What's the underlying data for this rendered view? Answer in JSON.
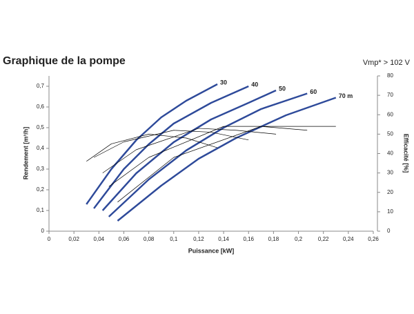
{
  "chart_data": {
    "type": "line",
    "title": "Graphique de la pompe",
    "subtitle": "Vmp* > 102 V",
    "x_label": "Puissance [kW]",
    "y_label": "Rendement [m³/h]",
    "y2_label": "Efficacité [%]",
    "xlim": [
      0,
      0.26
    ],
    "ylim": [
      0,
      0.75
    ],
    "y2lim": [
      0,
      80
    ],
    "xticks": [
      0,
      {
        "value": 0.02,
        "label": "0,02"
      },
      {
        "value": 0.04,
        "label": "0,04"
      },
      {
        "value": 0.06,
        "label": "0,06"
      },
      {
        "value": 0.08,
        "label": "0,08"
      },
      {
        "value": 0.1,
        "label": "0,1"
      },
      {
        "value": 0.12,
        "label": "0,12"
      },
      {
        "value": 0.14,
        "label": "0,14"
      },
      {
        "value": 0.16,
        "label": "0,16"
      },
      {
        "value": 0.18,
        "label": "0,18"
      },
      {
        "value": 0.2,
        "label": "0,2"
      },
      {
        "value": 0.22,
        "label": "0,22"
      },
      {
        "value": 0.24,
        "label": "0,24"
      },
      {
        "value": 0.26,
        "label": "0,26"
      }
    ],
    "yticks": [
      0,
      {
        "value": 0.1,
        "label": "0,1"
      },
      {
        "value": 0.2,
        "label": "0,2"
      },
      {
        "value": 0.3,
        "label": "0,3"
      },
      {
        "value": 0.4,
        "label": "0,4"
      },
      {
        "value": 0.5,
        "label": "0,5"
      },
      {
        "value": 0.6,
        "label": "0,6"
      },
      {
        "value": 0.7,
        "label": "0,7"
      }
    ],
    "y2ticks": [
      0,
      10,
      20,
      30,
      40,
      50,
      60,
      70,
      80
    ],
    "series": [
      {
        "name": "30",
        "color": "#2e4a9a",
        "x": [
          0.03,
          0.05,
          0.07,
          0.09,
          0.11,
          0.135
        ],
        "values": [
          0.13,
          0.3,
          0.44,
          0.55,
          0.63,
          0.71
        ]
      },
      {
        "name": "40",
        "color": "#2e4a9a",
        "x": [
          0.036,
          0.06,
          0.08,
          0.1,
          0.13,
          0.16
        ],
        "values": [
          0.11,
          0.3,
          0.42,
          0.52,
          0.62,
          0.7
        ]
      },
      {
        "name": "50",
        "color": "#2e4a9a",
        "x": [
          0.043,
          0.07,
          0.1,
          0.13,
          0.16,
          0.182
        ],
        "values": [
          0.1,
          0.28,
          0.43,
          0.54,
          0.62,
          0.68
        ]
      },
      {
        "name": "60",
        "color": "#2e4a9a",
        "x": [
          0.048,
          0.08,
          0.11,
          0.14,
          0.17,
          0.207
        ],
        "values": [
          0.07,
          0.25,
          0.39,
          0.5,
          0.59,
          0.665
        ]
      },
      {
        "name": "70 m",
        "color": "#2e4a9a",
        "x": [
          0.055,
          0.09,
          0.12,
          0.15,
          0.19,
          0.23
        ],
        "values": [
          0.05,
          0.22,
          0.35,
          0.45,
          0.56,
          0.645
        ]
      },
      {
        "color": "#000000",
        "axis": "y2",
        "x": [
          0.03,
          0.05,
          0.08,
          0.11,
          0.135
        ],
        "values": [
          36,
          45,
          50,
          48,
          43
        ]
      },
      {
        "color": "#000000",
        "axis": "y2",
        "x": [
          0.036,
          0.06,
          0.1,
          0.13,
          0.16
        ],
        "values": [
          38,
          46,
          52,
          51,
          47
        ]
      },
      {
        "color": "#000000",
        "axis": "y2",
        "x": [
          0.043,
          0.07,
          0.12,
          0.15,
          0.182
        ],
        "values": [
          30,
          42,
          53,
          52,
          50
        ]
      },
      {
        "color": "#000000",
        "axis": "y2",
        "x": [
          0.048,
          0.08,
          0.14,
          0.17,
          0.207
        ],
        "values": [
          23,
          38,
          54,
          54,
          52
        ]
      },
      {
        "color": "#000000",
        "axis": "y2",
        "x": [
          0.055,
          0.1,
          0.17,
          0.2,
          0.23
        ],
        "values": [
          15,
          38,
          54,
          54,
          54
        ]
      }
    ]
  }
}
